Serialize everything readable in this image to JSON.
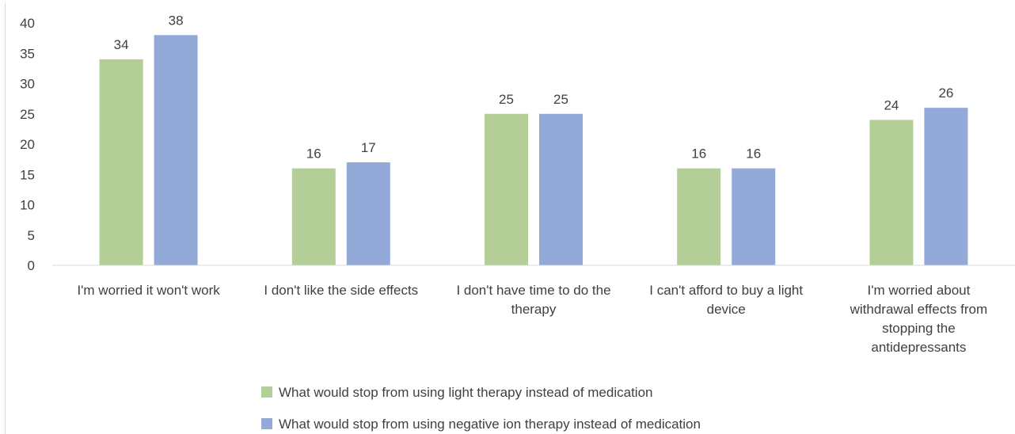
{
  "chart_data": {
    "type": "bar",
    "title": "",
    "xlabel": "",
    "ylabel": "",
    "ylim": [
      0,
      40
    ],
    "y_ticks": [
      0,
      5,
      10,
      15,
      20,
      25,
      30,
      35,
      40
    ],
    "grid": false,
    "legend_position": "bottom",
    "categories": [
      [
        "I'm worried it won't work"
      ],
      [
        "I don't like the side effects"
      ],
      [
        "I don't have time to do the",
        "therapy"
      ],
      [
        "I can't afford to buy a light",
        "device"
      ],
      [
        "I'm worried about",
        "withdrawal effects from",
        "stopping the",
        "antidepressants"
      ]
    ],
    "series": [
      {
        "name": "What would stop from using light therapy instead of medication",
        "color": "#b3cf97",
        "values": [
          34,
          16,
          25,
          16,
          24
        ]
      },
      {
        "name": "What would stop from using negative ion therapy instead of medication",
        "color": "#93a9d8",
        "values": [
          38,
          17,
          25,
          16,
          26
        ]
      }
    ]
  }
}
